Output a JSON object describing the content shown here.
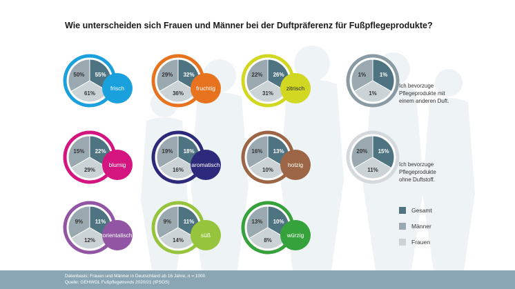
{
  "title": "Wie unterscheiden sich Frauen und Männer bei der Duftpräferenz für Fußpflegeprodukte?",
  "colors": {
    "gesamt": "#4f7481",
    "maenner": "#9aa9b0",
    "frauen": "#ccd3d7",
    "silhouette": "#eef3f6",
    "footer": "#8aa6b5"
  },
  "chart_data": {
    "type": "pie",
    "series_names": [
      "Gesamt",
      "Männer",
      "Frauen"
    ],
    "charts": [
      {
        "label": "frisch",
        "accent": "#1aa0dc",
        "values": {
          "Gesamt": 55,
          "Männer": 50,
          "Frauen": 61
        },
        "value_labels": {
          "Gesamt": "55%",
          "Männer": "50%",
          "Frauen": "61%"
        }
      },
      {
        "label": "fruchtig",
        "accent": "#e8731f",
        "values": {
          "Gesamt": 32,
          "Männer": 29,
          "Frauen": 36
        },
        "value_labels": {
          "Gesamt": "32%",
          "Männer": "29%",
          "Frauen": "36%"
        }
      },
      {
        "label": "zitrisch",
        "accent": "#d2d722",
        "values": {
          "Gesamt": 26,
          "Männer": 22,
          "Frauen": 31
        },
        "value_labels": {
          "Gesamt": "26%",
          "Männer": "22%",
          "Frauen": "31%"
        }
      },
      {
        "label": "Ich bevorzuge Pflegeprodukte mit einem anderen Duft.",
        "accent": "#8b9ba3",
        "values": {
          "Gesamt": 1,
          "Männer": 1,
          "Frauen": 1
        },
        "value_labels": {
          "Gesamt": "1%",
          "Männer": "1%",
          "Frauen": "1%"
        }
      },
      {
        "label": "blumig",
        "accent": "#d4147f",
        "values": {
          "Gesamt": 22,
          "Männer": 15,
          "Frauen": 29
        },
        "value_labels": {
          "Gesamt": "22%",
          "Männer": "15%",
          "Frauen": "29%"
        }
      },
      {
        "label": "aromatisch",
        "accent": "#2e2a7b",
        "values": {
          "Gesamt": 18,
          "Männer": 19,
          "Frauen": 16
        },
        "value_labels": {
          "Gesamt": "18%",
          "Männer": "19%",
          "Frauen": "16%"
        }
      },
      {
        "label": "holzig",
        "accent": "#9c6546",
        "values": {
          "Gesamt": 13,
          "Männer": 16,
          "Frauen": 10
        },
        "value_labels": {
          "Gesamt": "13%",
          "Männer": "16%",
          "Frauen": "10%"
        }
      },
      {
        "label": "Ich bevorzuge Pflegeprodukte ohne Duftstoff.",
        "accent": "#d3d9dc",
        "values": {
          "Gesamt": 15,
          "Männer": 20,
          "Frauen": 11
        },
        "value_labels": {
          "Gesamt": "15%",
          "Männer": "20%",
          "Frauen": "11%"
        }
      },
      {
        "label": "orientalisch",
        "accent": "#9155a3",
        "values": {
          "Gesamt": 11,
          "Männer": 9,
          "Frauen": 12
        },
        "value_labels": {
          "Gesamt": "11%",
          "Männer": "9%",
          "Frauen": "12%"
        }
      },
      {
        "label": "süß",
        "accent": "#96c43c",
        "values": {
          "Gesamt": 11,
          "Männer": 9,
          "Frauen": 14
        },
        "value_labels": {
          "Gesamt": "11%",
          "Männer": "9%",
          "Frauen": "14%"
        }
      },
      {
        "label": "würzig",
        "accent": "#36a23c",
        "values": {
          "Gesamt": 10,
          "Männer": 13,
          "Frauen": 8
        },
        "value_labels": {
          "Gesamt": "10%",
          "Männer": "13%",
          "Frauen": "8%"
        }
      }
    ]
  },
  "text_blocks": {
    "anderer_duft": [
      "Ich bevorzuge",
      "Pflegeprodukte mit",
      "einem anderen Duft."
    ],
    "ohne_duftstoff": [
      "Ich bevorzuge",
      "Pflegeprodukte",
      "ohne Duftstoff."
    ]
  },
  "legend": {
    "items": [
      {
        "label": "Gesamt",
        "color": "#4f7481"
      },
      {
        "label": "Männer",
        "color": "#9aa9b0"
      },
      {
        "label": "Frauen",
        "color": "#ccd3d7"
      }
    ]
  },
  "footer": {
    "line1": "Datenbasis: Frauen und Männer in Deutschland ab 16 Jahre, n = 1000",
    "line2": "Quelle: GEHWOL Fußpflegetrends 2020/21 (IPSOS)"
  }
}
